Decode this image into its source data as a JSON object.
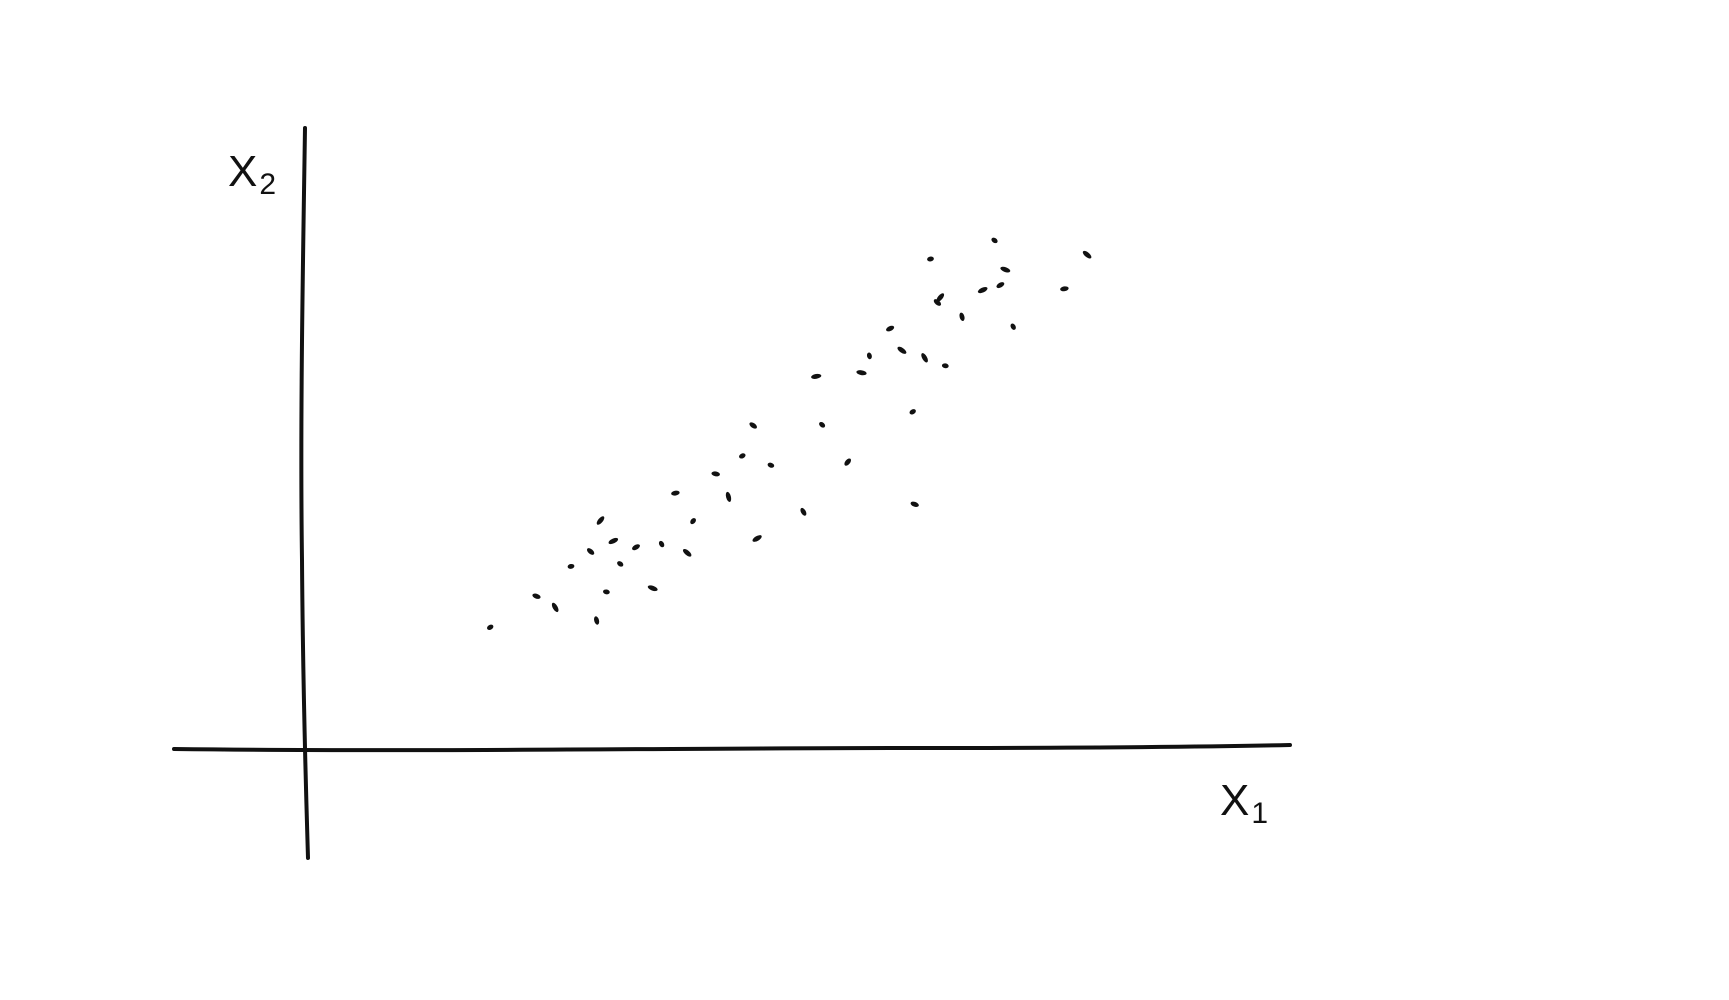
{
  "chart_data": {
    "type": "scatter",
    "title": "",
    "xlabel": {
      "base": "X",
      "sub": "1"
    },
    "ylabel": {
      "base": "X",
      "sub": "2"
    },
    "xlim": [
      0,
      100
    ],
    "ylim": [
      0,
      100
    ],
    "grid": false,
    "point_color": "#111111",
    "axis_color": "#111111",
    "series": [
      {
        "x": [
          18.8,
          23.5,
          25.4,
          27.0,
          29.0,
          30.0,
          30.6,
          29.6,
          31.3,
          32.0,
          33.6,
          35.3,
          36.2,
          37.6,
          38.8,
          39.4,
          41.7,
          43.0,
          44.4,
          45.5,
          45.9,
          47.3,
          50.6,
          51.9,
          52.5,
          55.1,
          56.5,
          57.3,
          59.4,
          60.6,
          61.7,
          61.9,
          62.9,
          63.5,
          64.2,
          64.5,
          65.0,
          66.7,
          68.8,
          70.0,
          70.6,
          71.1,
          71.9,
          77.1,
          79.4
        ],
        "y": [
          19.6,
          24.6,
          22.8,
          29.4,
          31.8,
          36.8,
          25.3,
          20.7,
          33.5,
          29.8,
          32.5,
          25.9,
          33.0,
          41.2,
          31.6,
          36.7,
          44.3,
          40.6,
          47.2,
          52.1,
          33.9,
          45.7,
          38.2,
          60.0,
          52.2,
          46.2,
          60.6,
          63.3,
          67.7,
          64.2,
          54.3,
          39.4,
          63.0,
          78.9,
          71.9,
          72.7,
          61.7,
          69.6,
          73.9,
          81.9,
          74.7,
          77.2,
          68.0,
          74.1,
          79.6
        ]
      }
    ]
  }
}
